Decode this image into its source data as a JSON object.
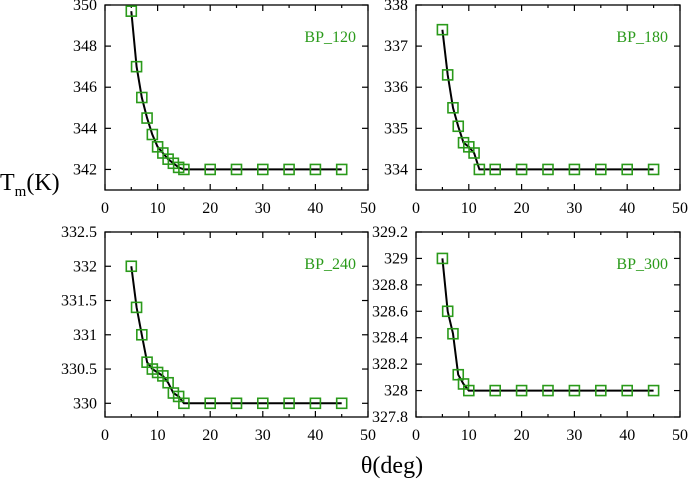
{
  "figure": {
    "ylabel_main": "T",
    "ylabel_sub": "m",
    "ylabel_unit": "(K)",
    "xlabel": "θ(deg)"
  },
  "style": {
    "marker_color": "#2a9a1a",
    "line_color": "#000000",
    "label_color": "#2a9a1a"
  },
  "chart_data": [
    {
      "type": "line",
      "title": "BP_120",
      "x": [
        5,
        6,
        7,
        8,
        9,
        10,
        11,
        12,
        13,
        14,
        15,
        20,
        25,
        30,
        35,
        40,
        45
      ],
      "series": [
        {
          "name": "BP_120",
          "values": [
            349.7,
            347.0,
            345.5,
            344.5,
            343.7,
            343.1,
            342.8,
            342.5,
            342.3,
            342.1,
            342.0,
            342.0,
            342.0,
            342.0,
            342.0,
            342.0,
            342.0
          ]
        }
      ],
      "xlim": [
        0,
        50
      ],
      "ylim": [
        341,
        350
      ],
      "xticks": [
        0,
        10,
        20,
        30,
        40,
        50
      ],
      "yticks": [
        342,
        344,
        346,
        348,
        350
      ],
      "yticklabels": [
        "342",
        "344",
        "346",
        "348",
        "350"
      ],
      "xlabel": "θ(deg)",
      "ylabel": "Tm(K)"
    },
    {
      "type": "line",
      "title": "BP_180",
      "x": [
        5,
        6,
        7,
        8,
        9,
        10,
        11,
        12,
        15,
        20,
        25,
        30,
        35,
        40,
        45
      ],
      "series": [
        {
          "name": "BP_180",
          "values": [
            337.4,
            336.3,
            335.5,
            335.05,
            334.65,
            334.55,
            334.4,
            334.0,
            334.0,
            334.0,
            334.0,
            334.0,
            334.0,
            334.0,
            334.0
          ]
        }
      ],
      "xlim": [
        0,
        50
      ],
      "ylim": [
        333.5,
        338
      ],
      "xticks": [
        0,
        10,
        20,
        30,
        40,
        50
      ],
      "yticks": [
        334,
        335,
        336,
        337,
        338
      ],
      "yticklabels": [
        "334",
        "335",
        "336",
        "337",
        "338"
      ],
      "xlabel": "θ(deg)",
      "ylabel": "Tm(K)"
    },
    {
      "type": "line",
      "title": "BP_240",
      "x": [
        5,
        6,
        7,
        8,
        9,
        10,
        11,
        12,
        13,
        14,
        15,
        20,
        25,
        30,
        35,
        40,
        45
      ],
      "series": [
        {
          "name": "BP_240",
          "values": [
            332.0,
            331.4,
            331.0,
            330.6,
            330.5,
            330.45,
            330.4,
            330.3,
            330.15,
            330.1,
            330.0,
            330.0,
            330.0,
            330.0,
            330.0,
            330.0,
            330.0
          ]
        }
      ],
      "xlim": [
        0,
        50
      ],
      "ylim": [
        329.8,
        332.5
      ],
      "xticks": [
        0,
        10,
        20,
        30,
        40,
        50
      ],
      "yticks": [
        330,
        330.5,
        331,
        331.5,
        332,
        332.5
      ],
      "yticklabels": [
        "330",
        "330.5",
        "331",
        "331.5",
        "332",
        "332.5"
      ],
      "xlabel": "θ(deg)",
      "ylabel": "Tm(K)"
    },
    {
      "type": "line",
      "title": "BP_300",
      "x": [
        5,
        6,
        7,
        8,
        9,
        10,
        15,
        20,
        25,
        30,
        35,
        40,
        45
      ],
      "series": [
        {
          "name": "BP_300",
          "values": [
            329.0,
            328.6,
            328.43,
            328.12,
            328.05,
            328.0,
            328.0,
            328.0,
            328.0,
            328.0,
            328.0,
            328.0,
            328.0
          ]
        }
      ],
      "xlim": [
        0,
        50
      ],
      "ylim": [
        327.8,
        329.2
      ],
      "xticks": [
        0,
        10,
        20,
        30,
        40,
        50
      ],
      "yticks": [
        327.8,
        328,
        328.2,
        328.4,
        328.6,
        328.8,
        329,
        329.2
      ],
      "yticklabels": [
        "327.8",
        "328",
        "328.2",
        "328.4",
        "328.6",
        "328.8",
        "329",
        "329.2"
      ],
      "xlabel": "θ(deg)",
      "ylabel": "Tm(K)"
    }
  ]
}
